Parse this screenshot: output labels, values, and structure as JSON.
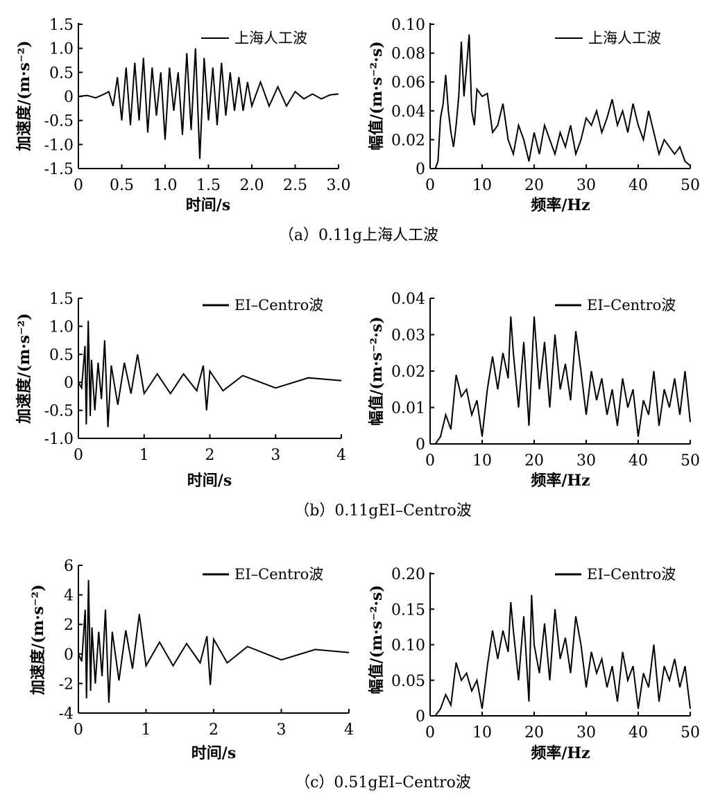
{
  "chart_data": [
    {
      "type": "line",
      "panel": "a",
      "side": "time",
      "title": "",
      "xlabel": "时间/s",
      "ylabel": "加速度/(m·s⁻²)",
      "legend": "上海人工波",
      "legend_position": "top-right",
      "xlim": [
        0,
        3.0
      ],
      "ylim": [
        -1.5,
        1.5
      ],
      "xticks": [
        "0",
        "0.5",
        "1.0",
        "1.5",
        "2.0",
        "2.5",
        "3.0"
      ],
      "yticks": [
        "1.5",
        "1.0",
        "0.5",
        "0",
        "-0.5",
        "-1.0",
        "-1.5"
      ],
      "series": [
        {
          "name": "上海人工波",
          "x": [
            0,
            0.1,
            0.2,
            0.3,
            0.35,
            0.4,
            0.45,
            0.5,
            0.55,
            0.6,
            0.65,
            0.7,
            0.75,
            0.8,
            0.85,
            0.9,
            0.95,
            1.0,
            1.05,
            1.1,
            1.15,
            1.2,
            1.25,
            1.3,
            1.35,
            1.4,
            1.45,
            1.5,
            1.55,
            1.6,
            1.65,
            1.7,
            1.75,
            1.8,
            1.85,
            1.9,
            1.95,
            2.0,
            2.1,
            2.2,
            2.3,
            2.4,
            2.5,
            2.6,
            2.7,
            2.8,
            2.9,
            3.0
          ],
          "values": [
            0,
            0.02,
            -0.03,
            0.05,
            0.1,
            -0.2,
            0.4,
            -0.5,
            0.6,
            -0.6,
            0.7,
            -0.5,
            0.8,
            -0.75,
            0.6,
            -0.4,
            0.5,
            -0.9,
            0.6,
            -0.3,
            0.5,
            -0.8,
            0.9,
            -0.7,
            1.0,
            -1.3,
            0.8,
            -0.5,
            0.6,
            -0.6,
            0.7,
            -0.4,
            0.5,
            -0.3,
            0.4,
            -0.3,
            0.3,
            -0.2,
            0.3,
            -0.2,
            0.2,
            -0.2,
            0.1,
            -0.05,
            0.05,
            -0.05,
            0.03,
            0.05
          ]
        }
      ]
    },
    {
      "type": "line",
      "panel": "a",
      "side": "frequency",
      "title": "",
      "xlabel": "频率/Hz",
      "ylabel": "幅值/(m·s⁻²·s)",
      "legend": "上海人工波",
      "legend_position": "top-right",
      "xlim": [
        0,
        50
      ],
      "ylim": [
        0,
        0.1
      ],
      "xticks": [
        "0",
        "10",
        "20",
        "30",
        "40",
        "50"
      ],
      "yticks": [
        "0.10",
        "0.08",
        "0.06",
        "0.04",
        "0.02",
        "0"
      ],
      "series": [
        {
          "name": "上海人工波",
          "x": [
            1,
            1.5,
            2,
            2.5,
            3,
            3.5,
            4,
            4.5,
            5,
            5.5,
            6,
            6.5,
            7,
            7.5,
            8,
            8.5,
            9,
            10,
            11,
            12,
            13,
            14,
            15,
            16,
            17,
            18,
            19,
            20,
            21,
            22,
            23,
            24,
            25,
            26,
            27,
            28,
            29,
            30,
            31,
            32,
            33,
            34,
            35,
            36,
            37,
            38,
            39,
            40,
            41,
            42,
            43,
            44,
            45,
            46,
            47,
            48,
            49,
            50
          ],
          "values": [
            0,
            0.005,
            0.035,
            0.045,
            0.065,
            0.04,
            0.025,
            0.015,
            0.03,
            0.05,
            0.088,
            0.05,
            0.07,
            0.093,
            0.04,
            0.03,
            0.055,
            0.05,
            0.052,
            0.025,
            0.03,
            0.045,
            0.02,
            0.01,
            0.03,
            0.02,
            0.005,
            0.025,
            0.01,
            0.03,
            0.02,
            0.01,
            0.025,
            0.015,
            0.03,
            0.01,
            0.02,
            0.035,
            0.03,
            0.04,
            0.025,
            0.035,
            0.048,
            0.03,
            0.04,
            0.025,
            0.045,
            0.03,
            0.02,
            0.04,
            0.025,
            0.01,
            0.02,
            0.015,
            0.01,
            0.015,
            0.005,
            0.002
          ]
        }
      ]
    },
    {
      "type": "line",
      "panel": "b",
      "side": "time",
      "title": "",
      "xlabel": "时间/s",
      "ylabel": "加速度/(m·s⁻²)",
      "legend": "EI–Centro波",
      "legend_position": "top-right",
      "xlim": [
        0,
        4
      ],
      "ylim": [
        -1.0,
        1.5
      ],
      "xticks": [
        "0",
        "1",
        "2",
        "3",
        "4"
      ],
      "yticks": [
        "1.5",
        "1.0",
        "0.5",
        "0",
        "-0.5",
        "-1.0"
      ],
      "series": [
        {
          "name": "EI–Centro波",
          "x": [
            0,
            0.05,
            0.1,
            0.12,
            0.15,
            0.18,
            0.2,
            0.25,
            0.3,
            0.35,
            0.4,
            0.45,
            0.5,
            0.6,
            0.7,
            0.8,
            0.9,
            1.0,
            1.2,
            1.4,
            1.6,
            1.8,
            1.9,
            1.95,
            2.0,
            2.2,
            2.5,
            3.0,
            3.5,
            4.0
          ],
          "values": [
            0,
            -0.1,
            0.65,
            -0.75,
            1.1,
            -0.6,
            0.4,
            -0.5,
            0.35,
            -0.3,
            0.75,
            -0.8,
            0.3,
            -0.4,
            0.35,
            -0.2,
            0.5,
            -0.2,
            0.15,
            -0.2,
            0.15,
            -0.15,
            0.3,
            -0.5,
            0.2,
            -0.15,
            0.12,
            -0.1,
            0.08,
            0.03
          ]
        }
      ]
    },
    {
      "type": "line",
      "panel": "b",
      "side": "frequency",
      "title": "",
      "xlabel": "频率/Hz",
      "ylabel": "幅值/(m·s⁻²·s)",
      "legend": "EI–Centro波",
      "legend_position": "top-right",
      "xlim": [
        0,
        50
      ],
      "ylim": [
        0,
        0.04
      ],
      "xticks": [
        "0",
        "10",
        "20",
        "30",
        "40",
        "50"
      ],
      "yticks": [
        "0.04",
        "0.03",
        "0.02",
        "0.01",
        "0"
      ],
      "series": [
        {
          "name": "EI–Centro波",
          "x": [
            1,
            2,
            3,
            4,
            5,
            6,
            7,
            8,
            9,
            10,
            11,
            12,
            13,
            14,
            15,
            15.5,
            16,
            17,
            18,
            19,
            20,
            21,
            22,
            23,
            24,
            25,
            26,
            27,
            28,
            29,
            30,
            31,
            32,
            33,
            34,
            35,
            36,
            37,
            38,
            39,
            40,
            41,
            42,
            43,
            44,
            45,
            46,
            47,
            48,
            49,
            50
          ],
          "values": [
            0,
            0.002,
            0.008,
            0.004,
            0.019,
            0.013,
            0.015,
            0.008,
            0.012,
            0.002,
            0.015,
            0.024,
            0.015,
            0.025,
            0.018,
            0.035,
            0.025,
            0.01,
            0.028,
            0.005,
            0.035,
            0.015,
            0.028,
            0.01,
            0.03,
            0.015,
            0.022,
            0.012,
            0.031,
            0.02,
            0.008,
            0.02,
            0.012,
            0.018,
            0.008,
            0.015,
            0.005,
            0.018,
            0.01,
            0.015,
            0.002,
            0.012,
            0.008,
            0.02,
            0.005,
            0.015,
            0.01,
            0.018,
            0.008,
            0.02,
            0.006
          ]
        }
      ]
    },
    {
      "type": "line",
      "panel": "c",
      "side": "time",
      "title": "",
      "xlabel": "时间/s",
      "ylabel": "加速度/(m·s⁻²)",
      "legend": "EI–Centro波",
      "legend_position": "top-right",
      "xlim": [
        0,
        4
      ],
      "ylim": [
        -4,
        6
      ],
      "xticks": [
        "0",
        "1",
        "2",
        "3",
        "4"
      ],
      "yticks": [
        "6",
        "4",
        "2",
        "0",
        "-2",
        "-4"
      ],
      "series": [
        {
          "name": "EI–Centro波",
          "x": [
            0,
            0.05,
            0.1,
            0.12,
            0.15,
            0.18,
            0.2,
            0.25,
            0.3,
            0.35,
            0.4,
            0.45,
            0.5,
            0.6,
            0.7,
            0.8,
            0.9,
            1.0,
            1.2,
            1.4,
            1.6,
            1.8,
            1.9,
            1.95,
            2.0,
            2.2,
            2.5,
            3.0,
            3.5,
            4.0
          ],
          "values": [
            0,
            -0.5,
            3.0,
            -3.0,
            5.0,
            -2.5,
            1.8,
            -2.0,
            1.5,
            -1.5,
            3.0,
            -3.3,
            1.5,
            -1.8,
            1.6,
            -1.0,
            2.7,
            -0.8,
            0.8,
            -0.8,
            0.7,
            -0.6,
            1.2,
            -2.1,
            1.0,
            -0.6,
            0.5,
            -0.4,
            0.3,
            0.1
          ]
        }
      ]
    },
    {
      "type": "line",
      "panel": "c",
      "side": "frequency",
      "title": "",
      "xlabel": "频率/Hz",
      "ylabel": "幅值/(m·s⁻²·s)",
      "legend": "EI–Centro波",
      "legend_position": "top-right",
      "xlim": [
        0,
        50
      ],
      "ylim": [
        0,
        0.2
      ],
      "xticks": [
        "0",
        "10",
        "20",
        "30",
        "40",
        "50"
      ],
      "yticks": [
        "0.20",
        "0.15",
        "0.10",
        "0.05",
        "0"
      ],
      "series": [
        {
          "name": "EI–Centro波",
          "x": [
            1,
            2,
            3,
            4,
            5,
            6,
            7,
            8,
            9,
            10,
            11,
            12,
            13,
            14,
            15,
            15.5,
            16,
            17,
            18,
            19,
            19.5,
            20,
            21,
            22,
            23,
            24,
            25,
            26,
            27,
            28,
            29,
            30,
            31,
            32,
            33,
            34,
            35,
            36,
            37,
            38,
            39,
            40,
            41,
            42,
            43,
            44,
            45,
            46,
            47,
            48,
            49,
            50
          ],
          "values": [
            0,
            0.01,
            0.03,
            0.015,
            0.075,
            0.05,
            0.06,
            0.035,
            0.05,
            0.01,
            0.07,
            0.12,
            0.08,
            0.12,
            0.09,
            0.16,
            0.12,
            0.05,
            0.14,
            0.02,
            0.17,
            0.1,
            0.06,
            0.13,
            0.05,
            0.15,
            0.08,
            0.11,
            0.06,
            0.14,
            0.1,
            0.04,
            0.09,
            0.06,
            0.08,
            0.04,
            0.07,
            0.02,
            0.09,
            0.05,
            0.07,
            0.01,
            0.06,
            0.04,
            0.1,
            0.02,
            0.07,
            0.05,
            0.08,
            0.04,
            0.07,
            0.01
          ]
        }
      ]
    }
  ],
  "captions": [
    "（a）0.11g上海人工波",
    "（b）0.11gEI–Centro波",
    "（c）0.51gEI–Centro波"
  ]
}
